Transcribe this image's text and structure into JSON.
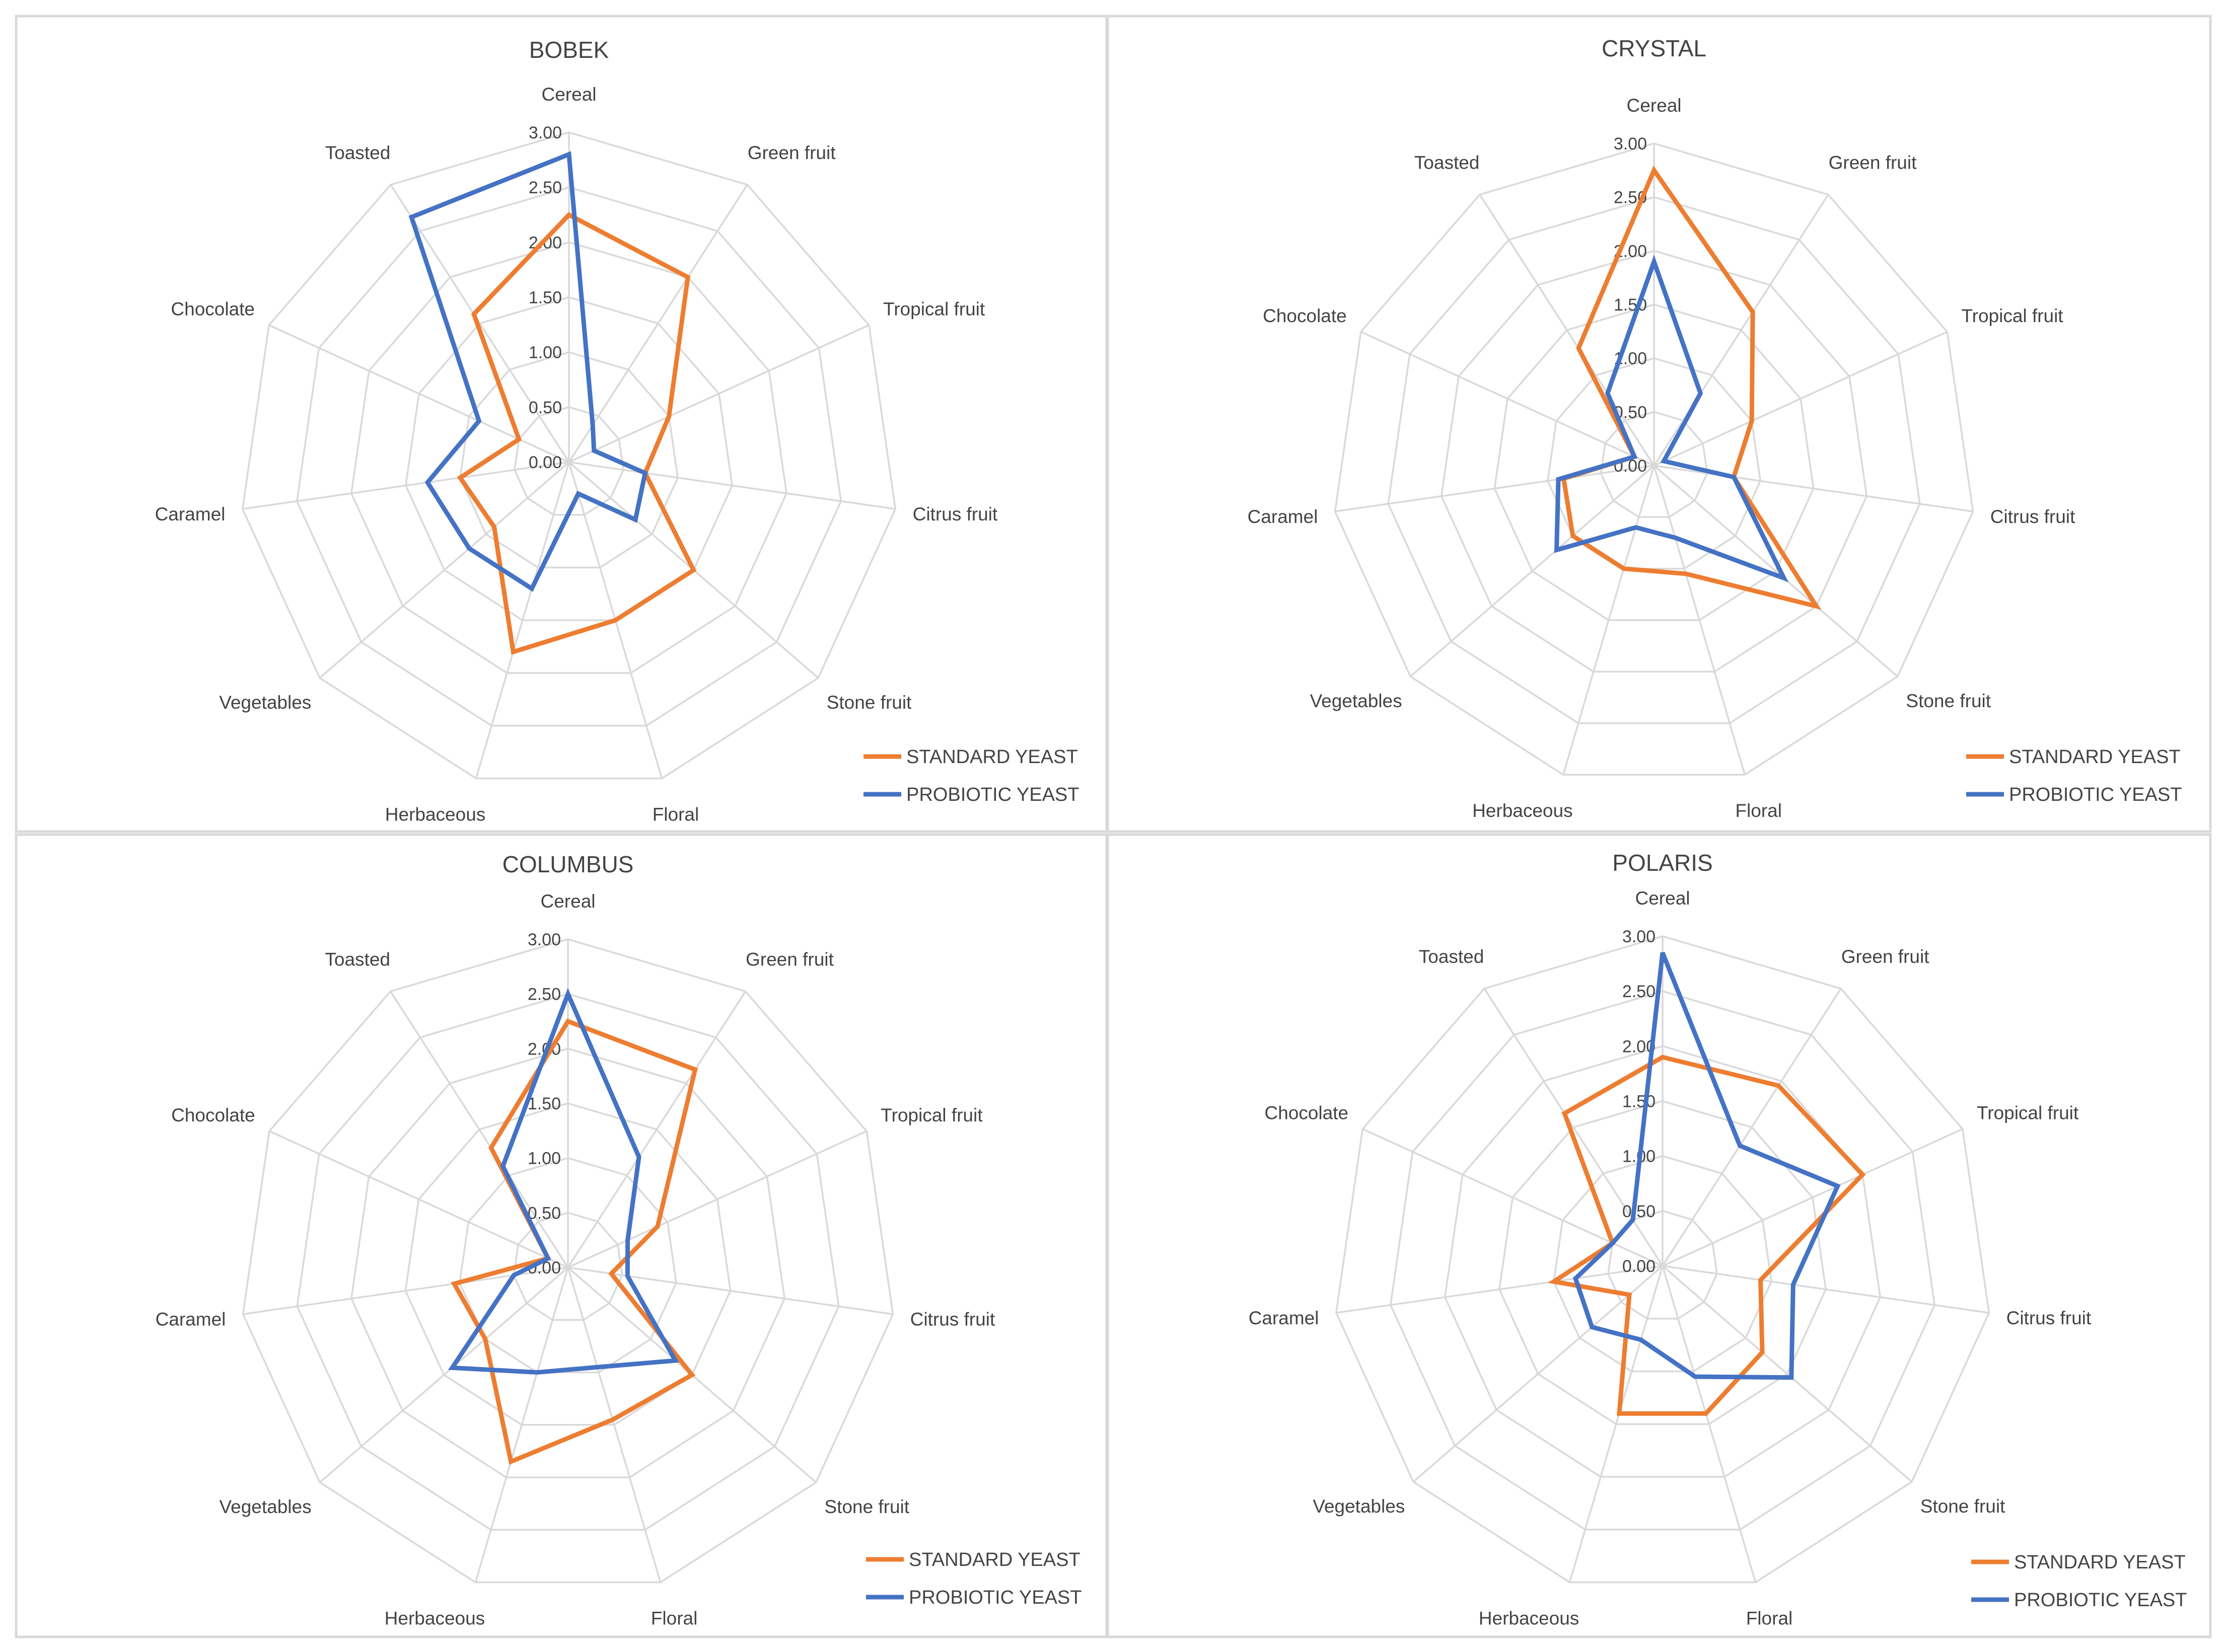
{
  "chart_data": [
    {
      "type": "radar",
      "title": "BOBEK",
      "categories": [
        "Cereal",
        "Green fruit",
        "Tropical fruit",
        "Citrus fruit",
        "Stone fruit",
        "Floral",
        "Herbaceous",
        "Vegetables",
        "Caramel",
        "Chocolate",
        "Toasted"
      ],
      "ticks": [
        "0.00",
        "0.50",
        "1.00",
        "1.50",
        "2.00",
        "2.50",
        "3.00"
      ],
      "rlim": [
        0,
        3
      ],
      "legend_position": "bottom-right",
      "series": [
        {
          "name": "STANDARD YEAST",
          "color": "#ed7d31",
          "values": [
            2.25,
            2.0,
            1.0,
            0.7,
            1.5,
            1.5,
            1.8,
            0.9,
            1.0,
            0.5,
            1.6
          ]
        },
        {
          "name": "PROBIOTIC YEAST",
          "color": "#4472c4",
          "values": [
            2.8,
            0.4,
            0.25,
            0.7,
            0.8,
            0.3,
            1.2,
            1.2,
            1.3,
            0.9,
            2.65
          ]
        }
      ]
    },
    {
      "type": "radar",
      "title": "CRYSTAL",
      "categories": [
        "Cereal",
        "Green fruit",
        "Tropical fruit",
        "Citrus fruit",
        "Stone fruit",
        "Floral",
        "Herbaceous",
        "Vegetables",
        "Caramel",
        "Chocolate",
        "Toasted"
      ],
      "ticks": [
        "0.00",
        "0.50",
        "1.00",
        "1.50",
        "2.00",
        "2.50",
        "3.00"
      ],
      "rlim": [
        0,
        3
      ],
      "legend_position": "bottom-right",
      "series": [
        {
          "name": "STANDARD YEAST",
          "color": "#ed7d31",
          "values": [
            2.75,
            1.7,
            1.0,
            0.75,
            2.0,
            1.05,
            1.0,
            1.0,
            0.85,
            0.2,
            1.3
          ]
        },
        {
          "name": "PROBIOTIC YEAST",
          "color": "#4472c4",
          "values": [
            1.9,
            0.8,
            0.1,
            0.75,
            1.6,
            0.7,
            0.6,
            1.2,
            0.9,
            0.2,
            0.8
          ]
        }
      ]
    },
    {
      "type": "radar",
      "title": "COLUMBUS",
      "categories": [
        "Cereal",
        "Green fruit",
        "Tropical fruit",
        "Citrus fruit",
        "Stone fruit",
        "Floral",
        "Herbaceous",
        "Vegetables",
        "Caramel",
        "Chocolate",
        "Toasted"
      ],
      "ticks": [
        "0.00",
        "0.50",
        "1.00",
        "1.50",
        "2.00",
        "2.50",
        "3.00"
      ],
      "rlim": [
        0,
        3
      ],
      "legend_position": "bottom-right",
      "series": [
        {
          "name": "STANDARD YEAST",
          "color": "#ed7d31",
          "values": [
            2.25,
            2.15,
            0.9,
            0.4,
            1.5,
            1.45,
            1.85,
            1.0,
            1.05,
            0.2,
            1.3
          ]
        },
        {
          "name": "PROBIOTIC YEAST",
          "color": "#4472c4",
          "values": [
            2.5,
            1.2,
            0.6,
            0.55,
            1.3,
            0.95,
            1.0,
            1.4,
            0.5,
            0.2,
            1.1
          ]
        }
      ]
    },
    {
      "type": "radar",
      "title": "POLARIS",
      "categories": [
        "Cereal",
        "Green fruit",
        "Tropical fruit",
        "Citrus fruit",
        "Stone fruit",
        "Floral",
        "Herbaceous",
        "Vegetables",
        "Caramel",
        "Chocolate",
        "Toasted"
      ],
      "ticks": [
        "0.00",
        "0.50",
        "1.00",
        "1.50",
        "2.00",
        "2.50",
        "3.00"
      ],
      "rlim": [
        0,
        3
      ],
      "legend_position": "bottom-right",
      "series": [
        {
          "name": "STANDARD YEAST",
          "color": "#ed7d31",
          "values": [
            1.9,
            1.95,
            2.0,
            0.9,
            1.2,
            1.4,
            1.4,
            0.4,
            1.0,
            0.5,
            1.65
          ]
        },
        {
          "name": "PROBIOTIC YEAST",
          "color": "#4472c4",
          "values": [
            2.85,
            1.3,
            1.75,
            1.2,
            1.55,
            1.05,
            0.7,
            0.85,
            0.8,
            0.5,
            0.5
          ]
        }
      ]
    }
  ]
}
